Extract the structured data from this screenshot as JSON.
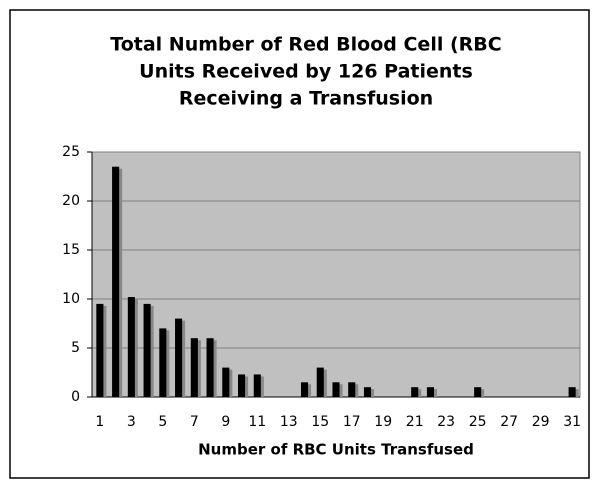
{
  "chart_data": {
    "type": "bar",
    "title": [
      "Total Number of Red Blood Cell (RBC",
      "Units Received by 126 Patients",
      "Receiving a Transfusion"
    ],
    "x_label": "Number of RBC Units Transfused",
    "categories": [
      1,
      null,
      3,
      null,
      5,
      null,
      7,
      null,
      9,
      null,
      11,
      null,
      13,
      null,
      15,
      null,
      17,
      null,
      19,
      null,
      21,
      null,
      23,
      null,
      25,
      null,
      27,
      null,
      29,
      null,
      31
    ],
    "values": [
      9.5,
      23.5,
      10.2,
      9.5,
      7,
      8,
      6,
      6,
      3,
      2.3,
      2.3,
      0,
      0,
      1.5,
      3,
      1.5,
      1.5,
      1,
      0,
      0,
      1,
      1,
      0,
      0,
      1,
      0,
      0,
      0,
      0,
      0,
      1
    ],
    "color": "#000000",
    "shadow_color": "#888888",
    "plot_background": "#c0c0c0",
    "ylim": [
      0,
      25
    ],
    "yticks": [
      0,
      5,
      10,
      15,
      20,
      25
    ],
    "grid": true
  }
}
